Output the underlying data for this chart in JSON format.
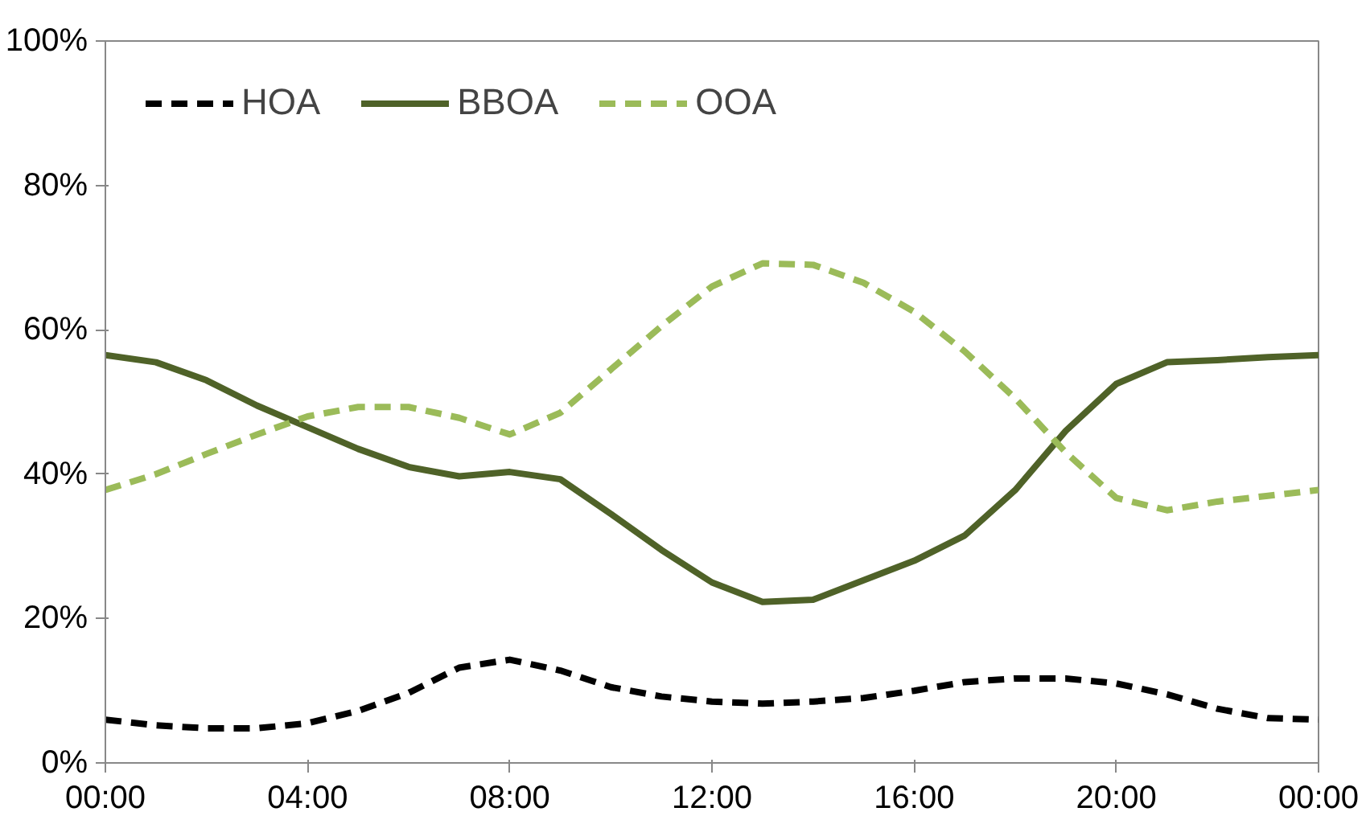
{
  "chart_data": {
    "type": "line",
    "x": [
      0,
      1,
      2,
      3,
      4,
      5,
      6,
      7,
      8,
      9,
      10,
      11,
      12,
      13,
      14,
      15,
      16,
      17,
      18,
      19,
      20,
      21,
      22,
      23,
      24
    ],
    "series": [
      {
        "name": "HOA",
        "color": "#000000",
        "line_style": "dashed",
        "values": [
          6,
          5.2,
          4.8,
          4.8,
          5.5,
          7.2,
          9.7,
          13.2,
          14.3,
          12.8,
          10.5,
          9.2,
          8.5,
          8.2,
          8.5,
          9,
          10,
          11.2,
          11.7,
          11.7,
          11,
          9.5,
          7.5,
          6.2,
          6
        ]
      },
      {
        "name": "BBOA",
        "color": "#4f6228",
        "line_style": "solid",
        "values": [
          56.5,
          55.5,
          53,
          49.5,
          46.5,
          43.5,
          41,
          39.7,
          40.3,
          39.3,
          34.5,
          29.5,
          25,
          22.3,
          22.6,
          25.3,
          28,
          31.5,
          37.8,
          46,
          52.5,
          55.5,
          55.8,
          56.2,
          56.5
        ]
      },
      {
        "name": "OOA",
        "color": "#9bbb59",
        "line_style": "dashed",
        "values": [
          37.8,
          40,
          42.8,
          45.5,
          48,
          49.3,
          49.3,
          47.8,
          45.5,
          48.5,
          54.5,
          60.5,
          66,
          69.2,
          69,
          66.5,
          62.5,
          57,
          50.5,
          43,
          36.7,
          35,
          36.2,
          37,
          37.8
        ]
      }
    ],
    "xlim": [
      0,
      24
    ],
    "xticks": [
      {
        "value": 0,
        "label": "00:00"
      },
      {
        "value": 4,
        "label": "04:00"
      },
      {
        "value": 8,
        "label": "08:00"
      },
      {
        "value": 12,
        "label": "12:00"
      },
      {
        "value": 16,
        "label": "16:00"
      },
      {
        "value": 20,
        "label": "20:00"
      },
      {
        "value": 24,
        "label": "00:00"
      }
    ],
    "ylim": [
      0,
      100
    ],
    "yticks": [
      {
        "value": 0,
        "label": "0%"
      },
      {
        "value": 20,
        "label": "20%"
      },
      {
        "value": 40,
        "label": "40%"
      },
      {
        "value": 60,
        "label": "60%"
      },
      {
        "value": 80,
        "label": "80%"
      },
      {
        "value": 100,
        "label": "100%"
      }
    ],
    "grid": false,
    "legend": "top left",
    "marker": "none"
  }
}
